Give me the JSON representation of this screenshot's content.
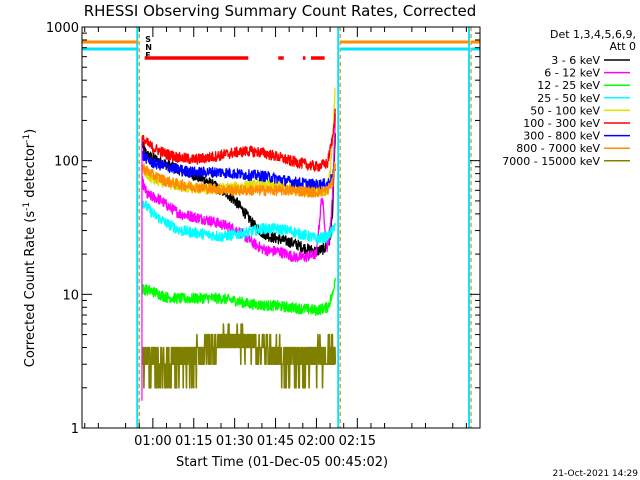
{
  "chart_data": {
    "type": "line",
    "title": "RHESSI Observing Summary Count Rates, Corrected",
    "xlabel": "Start Time (01-Dec-05 00:45:02)",
    "ylabel_main": "Corrected Count Rate (s",
    "ylabel_sup1": "-1",
    "ylabel_mid": " detector",
    "ylabel_sup2": "-1",
    "ylabel_end": ")",
    "yscale": "log",
    "ylim": [
      1,
      1000
    ],
    "xlim_minutes_of_day": [
      34,
      180
    ],
    "x_ticks": [
      {
        "minute": 60,
        "label": "01:00"
      },
      {
        "minute": 75,
        "label": "01:15"
      },
      {
        "minute": 90,
        "label": "01:30"
      },
      {
        "minute": 105,
        "label": "01:45"
      },
      {
        "minute": 120,
        "label": "02:00"
      },
      {
        "minute": 135,
        "label": "02:15"
      }
    ],
    "y_ticks": [
      {
        "value": 1,
        "label": "1"
      },
      {
        "value": 10,
        "label": "10"
      },
      {
        "value": 100,
        "label": "100"
      },
      {
        "value": 1000,
        "label": "1000"
      }
    ],
    "legend_header": [
      "Det 1,3,4,5,6,9,",
      "Att 0"
    ],
    "legend_placement": "top-right outside",
    "flag_labels": [
      {
        "letter": "S",
        "color": "#ff8c00"
      },
      {
        "letter": "N",
        "color": "#00e5ff"
      },
      {
        "letter": "F",
        "color": "#ff0000"
      }
    ],
    "flare_flag_segments": [
      [
        57,
        95
      ],
      [
        106,
        108
      ],
      [
        115,
        116
      ],
      [
        118,
        123
      ]
    ],
    "data_start_minute": 56,
    "data_end_minute": 127,
    "eclipse_markers_minute": [
      55,
      128
    ],
    "series": [
      {
        "name": "3 - 6 keV",
        "color": "#000000",
        "x": [
          56,
          58,
          62,
          66,
          70,
          75,
          80,
          84,
          88,
          91,
          94,
          97,
          100,
          103,
          106,
          109,
          112,
          116,
          120,
          123,
          125,
          126,
          127
        ],
        "y": [
          130,
          110,
          100,
          92,
          85,
          78,
          70,
          62,
          55,
          48,
          40,
          33,
          29,
          27,
          26,
          25,
          24,
          22,
          21,
          22,
          25,
          45,
          180
        ]
      },
      {
        "name": "6 - 12 keV",
        "color": "#ff00ff",
        "x": [
          56,
          58,
          62,
          66,
          70,
          75,
          80,
          84,
          88,
          91,
          94,
          97,
          100,
          103,
          106,
          109,
          112,
          116,
          120,
          122,
          124,
          125,
          126,
          127
        ],
        "y": [
          70,
          55,
          52,
          45,
          40,
          38,
          36,
          34,
          32,
          30,
          27,
          24,
          22,
          21,
          21,
          20,
          19,
          19,
          20,
          55,
          22,
          30,
          60,
          250
        ]
      },
      {
        "name": "12 - 25 keV",
        "color": "#00ff00",
        "x": [
          56,
          60,
          65,
          70,
          75,
          80,
          85,
          90,
          95,
          100,
          105,
          110,
          115,
          120,
          124,
          126,
          127
        ],
        "y": [
          11,
          10.5,
          9.5,
          9.3,
          9.3,
          9.4,
          9.3,
          9.0,
          8.5,
          8.3,
          8.2,
          8.0,
          7.8,
          7.6,
          8,
          10,
          14
        ]
      },
      {
        "name": "25 - 50 keV",
        "color": "#00ffff",
        "x": [
          56,
          60,
          65,
          70,
          75,
          80,
          85,
          90,
          95,
          100,
          105,
          110,
          115,
          120,
          124,
          126,
          127
        ],
        "y": [
          50,
          40,
          34,
          30,
          29,
          28,
          27,
          28,
          29,
          31,
          31,
          30,
          28,
          26,
          27,
          30,
          35
        ]
      },
      {
        "name": "50 - 100 keV",
        "color": "#e0e000",
        "x": [
          56,
          60,
          65,
          70,
          75,
          80,
          85,
          90,
          95,
          100,
          105,
          110,
          115,
          120,
          124,
          125,
          126,
          127
        ],
        "y": [
          85,
          72,
          68,
          64,
          62,
          61,
          62,
          63,
          65,
          67,
          66,
          64,
          60,
          58,
          60,
          80,
          150,
          400
        ]
      },
      {
        "name": "100 - 300 keV",
        "color": "#ff0000",
        "x": [
          56,
          60,
          65,
          70,
          75,
          80,
          85,
          90,
          95,
          100,
          105,
          110,
          115,
          120,
          124,
          126,
          127
        ],
        "y": [
          145,
          125,
          112,
          105,
          102,
          105,
          110,
          115,
          118,
          115,
          108,
          100,
          95,
          90,
          95,
          150,
          260
        ]
      },
      {
        "name": "300 - 800 keV",
        "color": "#0000ff",
        "x": [
          56,
          60,
          65,
          70,
          75,
          80,
          85,
          90,
          95,
          100,
          105,
          110,
          115,
          120,
          124,
          126,
          127
        ],
        "y": [
          110,
          96,
          90,
          85,
          82,
          82,
          82,
          80,
          78,
          77,
          74,
          70,
          68,
          66,
          67,
          75,
          95
        ]
      },
      {
        "name": "800 - 7000 keV",
        "color": "#ff8c00",
        "x": [
          56,
          60,
          65,
          70,
          75,
          80,
          85,
          90,
          95,
          100,
          105,
          110,
          115,
          120,
          124,
          126,
          127
        ],
        "y": [
          90,
          78,
          70,
          66,
          64,
          62,
          61,
          60,
          60,
          60,
          60,
          60,
          59,
          58,
          60,
          70,
          100
        ]
      },
      {
        "name": "7000 - 15000 keV",
        "color": "#808000",
        "x": [
          56,
          60,
          65,
          70,
          75,
          78,
          82,
          86,
          90,
          95,
          100,
          105,
          110,
          115,
          120,
          124,
          127
        ],
        "y": [
          3.5,
          3.2,
          3.0,
          3.1,
          3.3,
          3.8,
          4.2,
          4.5,
          4.6,
          4.4,
          4.0,
          3.6,
          3.3,
          3.2,
          3.5,
          3.6,
          3.6
        ]
      }
    ]
  },
  "timestamp": "21-Oct-2021 14:29",
  "colors": {
    "axes": "#000000",
    "eclipse_orange": "#ff8c00",
    "eclipse_cyan": "#00e5ff"
  }
}
